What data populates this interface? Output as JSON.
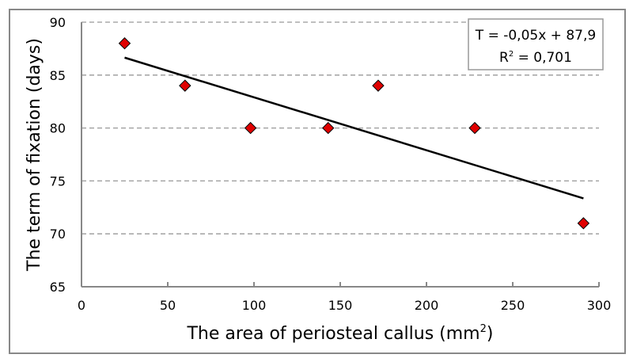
{
  "chart_data": {
    "type": "scatter",
    "title": "",
    "xlabel": "The area of periosteal callus (mm",
    "xlabel_sup": "2",
    "xlabel_end": ")",
    "ylabel": "The term of fixation (days)",
    "xlim": [
      0,
      300
    ],
    "ylim": [
      65,
      90
    ],
    "xticks": [
      "0",
      "50",
      "100",
      "150",
      "200",
      "250",
      "300"
    ],
    "yticks": [
      "65",
      "70",
      "75",
      "80",
      "85",
      "90"
    ],
    "grid": "horizontal dashed",
    "points": [
      {
        "x": 25,
        "y": 88
      },
      {
        "x": 60,
        "y": 84
      },
      {
        "x": 98,
        "y": 80
      },
      {
        "x": 143,
        "y": 80
      },
      {
        "x": 172,
        "y": 84
      },
      {
        "x": 228,
        "y": 80
      },
      {
        "x": 291,
        "y": 71
      }
    ],
    "trendline": {
      "slope": -0.05,
      "intercept": 87.9,
      "x_range": [
        25,
        291
      ]
    },
    "annotation": {
      "equation": "T = -0,05x + 87,9",
      "r2_prefix": "R",
      "r2_sup": "2",
      "r2_value": " = 0,701",
      "placement": "top-right"
    },
    "colors": {
      "marker": "#e00000",
      "marker_edge": "#000000",
      "line": "#000000",
      "grid": "#999999",
      "axis": "#888888"
    }
  }
}
